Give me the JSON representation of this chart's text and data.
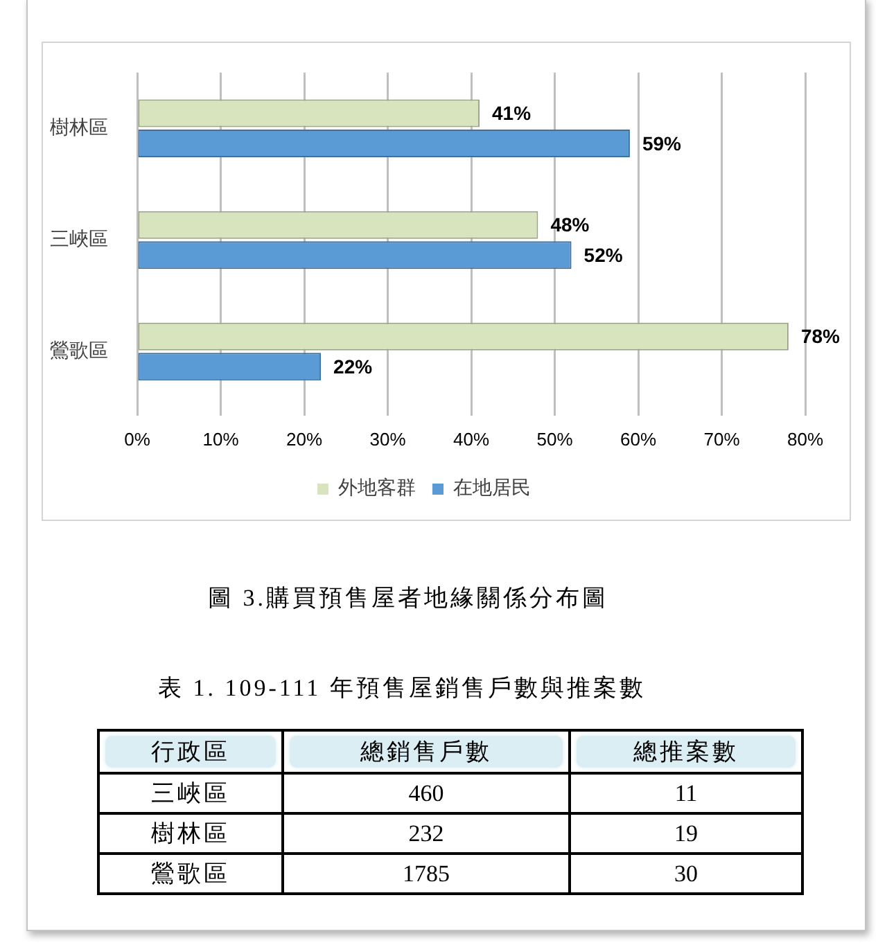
{
  "chart_data": [
    {
      "type": "bar",
      "title": "圖 3.購買預售屋者地緣關係分布圖",
      "orientation": "horizontal",
      "categories": [
        "樹林區",
        "三峽區",
        "鶯歌區"
      ],
      "series": [
        {
          "name": "外地客群",
          "color": "#d7e4bd",
          "values": [
            41,
            48,
            78
          ],
          "value_labels": [
            "41%",
            "48%",
            "78%"
          ]
        },
        {
          "name": "在地居民",
          "color": "#5b9bd5",
          "values": [
            59,
            52,
            22
          ],
          "value_labels": [
            "59%",
            "52%",
            "22%"
          ]
        }
      ],
      "xlim": [
        0,
        80
      ],
      "xticks": [
        {
          "value": 0,
          "label": "0%"
        },
        {
          "value": 10,
          "label": "10%"
        },
        {
          "value": 20,
          "label": "20%"
        },
        {
          "value": 30,
          "label": "30%"
        },
        {
          "value": 40,
          "label": "40%"
        },
        {
          "value": 50,
          "label": "50%"
        },
        {
          "value": 60,
          "label": "60%"
        },
        {
          "value": 70,
          "label": "70%"
        },
        {
          "value": 80,
          "label": "80%"
        }
      ],
      "grid": "x",
      "legend": "bottom"
    },
    {
      "type": "other",
      "title": "表 1. 109-111 年預售屋銷售戶數與推案數",
      "xlabel": "行政區",
      "categories": [
        "三峽區",
        "樹林區",
        "鶯歌區"
      ],
      "series": [
        {
          "name": "總銷售戶數",
          "values": [
            460,
            232,
            1785
          ]
        },
        {
          "name": "總推案數",
          "values": [
            11,
            19,
            30
          ]
        }
      ],
      "data_labels": true
    }
  ]
}
